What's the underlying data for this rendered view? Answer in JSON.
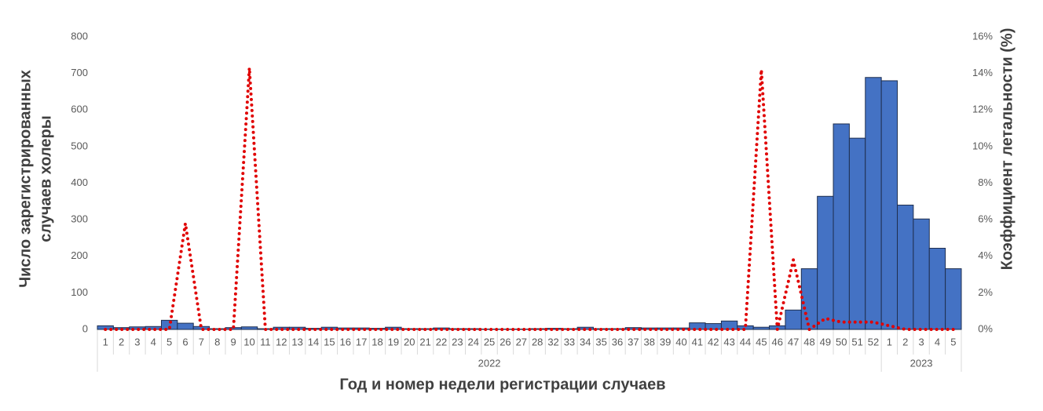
{
  "chart_data": {
    "type": "bar-line",
    "ylabel": [
      "Число зарегистрированных",
      "случаев холеры"
    ],
    "y2label": "Коэффициент летальности (%)",
    "xlabel": "Год и номер недели регистрации случаев",
    "groups": [
      "2022",
      "2023"
    ],
    "categories": [
      "1",
      "2",
      "3",
      "4",
      "5",
      "6",
      "7",
      "8",
      "9",
      "10",
      "11",
      "12",
      "13",
      "14",
      "15",
      "16",
      "17",
      "18",
      "19",
      "20",
      "21",
      "22",
      "23",
      "24",
      "25",
      "26",
      "27",
      "28",
      "32",
      "33",
      "34",
      "35",
      "36",
      "37",
      "38",
      "39",
      "40",
      "41",
      "42",
      "43",
      "44",
      "45",
      "46",
      "47",
      "48",
      "49",
      "50",
      "51",
      "52",
      "1",
      "2",
      "3",
      "4",
      "5"
    ],
    "series": [
      {
        "type": "bar",
        "color": "#4472c4",
        "values": [
          10,
          5,
          7,
          8,
          25,
          17,
          8,
          2,
          5,
          7,
          2,
          6,
          6,
          3,
          6,
          4,
          4,
          3,
          6,
          2,
          2,
          4,
          2,
          2,
          1,
          1,
          1,
          2,
          3,
          2,
          6,
          2,
          2,
          5,
          4,
          4,
          4,
          18,
          16,
          23,
          10,
          6,
          10,
          53,
          166,
          364,
          562,
          523,
          689,
          680,
          340,
          302,
          222,
          166
        ]
      },
      {
        "type": "line",
        "axis": "y2",
        "color": "#e00000",
        "values": [
          0,
          0,
          0,
          0,
          0,
          5.8,
          0,
          0,
          0,
          14.3,
          0,
          0,
          0,
          0,
          0,
          0,
          0,
          0,
          0,
          0,
          0,
          0,
          0,
          0,
          0,
          0,
          0,
          0,
          0,
          0,
          0,
          0,
          0,
          0,
          0,
          0,
          0,
          0,
          0,
          0,
          0,
          14.2,
          0,
          3.8,
          0,
          0.6,
          0.4,
          0.4,
          0.4,
          0.2,
          0,
          0,
          0,
          0
        ]
      }
    ],
    "ylim": [
      0,
      800
    ],
    "yticks": [
      0,
      100,
      200,
      300,
      400,
      500,
      600,
      700,
      800
    ],
    "y2lim": [
      0,
      16
    ],
    "y2ticks": [
      {
        "value": 0,
        "label": "0%"
      },
      {
        "value": 2,
        "label": "2%"
      },
      {
        "value": 4,
        "label": "4%"
      },
      {
        "value": 6,
        "label": "6%"
      },
      {
        "value": 8,
        "label": "8%"
      },
      {
        "value": 10,
        "label": "10%"
      },
      {
        "value": 12,
        "label": "12%"
      },
      {
        "value": 14,
        "label": "14%"
      },
      {
        "value": 16,
        "label": "16%"
      }
    ]
  }
}
